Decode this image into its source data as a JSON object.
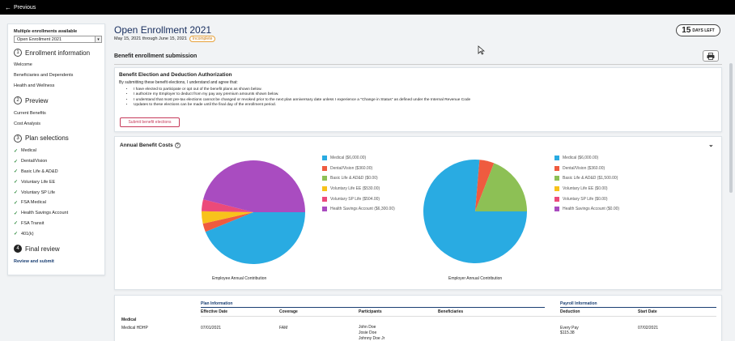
{
  "topbar": {
    "back_label": "Previous"
  },
  "sidebar": {
    "multiple_title": "Multiple enrollments available",
    "select_value": "Open Enrollment 2021",
    "sections": [
      {
        "num": "1",
        "title": "Enrollment information",
        "items": [
          "Welcome",
          "Beneficiaries and Dependents",
          "Health and Wellness"
        ]
      },
      {
        "num": "2",
        "title": "Preview",
        "items": [
          "Current Benefits",
          "Cost Analysis"
        ]
      },
      {
        "num": "3",
        "title": "Plan selections",
        "items": [
          "Medical",
          "Dental/Vision",
          "Basic Life & AD&D",
          "Voluntary Life EE",
          "Voluntary SP Life",
          "FSA Medical",
          "Health Savings Account",
          "FSA Transit",
          "401(k)"
        ]
      },
      {
        "num": "4",
        "title": "Final review",
        "items": [
          "Review and submit"
        ]
      }
    ]
  },
  "header": {
    "title": "Open Enrollment 2021",
    "dates": "May 15, 2021 through June 15, 2021",
    "status": "Incomplete",
    "days_left_num": "15",
    "days_left_label": "DAYS LEFT"
  },
  "submission": {
    "heading": "Benefit enrollment submission"
  },
  "authorization": {
    "title": "Benefit Election and Deduction Authorization",
    "intro": "By submitting these benefit elections, I understand and agree that:",
    "bullets": [
      "I have elected to participate or opt out of the benefit plans as shown below.",
      "I authorize my Employer to deduct from my pay any premium amounts shown below.",
      "I understand that most pre-tax elections cannot be changed or revoked prior to the next plan anniversary date unless I experience a \"Change in Status\" as defined under the Internal Revenue Code",
      "Updates to these elections can be made until the final day of the enrollment period."
    ],
    "submit_label": "Submit benefit elections"
  },
  "costs": {
    "title": "Annual Benefit Costs"
  },
  "colors": {
    "medical": "#29abe2",
    "dental": "#ef5b3f",
    "life": "#8dc055",
    "vol_life": "#f8c21b",
    "sp_life": "#ec4a7a",
    "hsa": "#a94cc0"
  },
  "chart_data": [
    {
      "type": "pie",
      "title": "Employee Annual Contribution",
      "categories": [
        "Medical",
        "Dental/Vision",
        "Basic Life & AD&D",
        "Voluntary Life EE",
        "Voluntary SP Life",
        "Health Savings Account"
      ],
      "values": [
        6000,
        360,
        0,
        530,
        504,
        6300
      ],
      "legend": [
        "Medical ($6,000.00)",
        "Dental/Vision ($360.00)",
        "Basic Life & AD&D ($0.00)",
        "Voluntary Life EE ($530.00)",
        "Voluntary SP Life ($504.00)",
        "Health Savings Account ($6,300.00)"
      ],
      "legend_placement": "right"
    },
    {
      "type": "pie",
      "title": "Employer Annual Contribution",
      "categories": [
        "Medical",
        "Dental/Vision",
        "Basic Life & AD&D",
        "Voluntary Life EE",
        "Voluntary SP Life",
        "Health Savings Account"
      ],
      "values": [
        6000,
        360,
        1500,
        0,
        0,
        0
      ],
      "legend": [
        "Medical ($6,000.00)",
        "Dental/Vision ($360.00)",
        "Basic Life & AD&D ($1,500.00)",
        "Voluntary Life EE ($0.00)",
        "Voluntary SP Life ($0.00)",
        "Health Savings Account ($0.00)"
      ],
      "legend_placement": "right"
    }
  ],
  "plan_table": {
    "group_plan": "Plan Information",
    "group_payroll": "Payroll Information",
    "columns": [
      "Effective Date",
      "Coverage",
      "Participants",
      "Beneficiaries",
      "Deduction",
      "Start Date"
    ],
    "row": {
      "category": "Medical",
      "plan": "Medical HDHP",
      "effective": "07/01/2021",
      "coverage": "FAM",
      "participants": [
        "John Doe",
        "Josie Doe",
        "Johnny Doe Jr"
      ],
      "deduction_freq": "Every Pay",
      "deduction_amt": "$115.38",
      "start": "07/02/2021"
    }
  }
}
